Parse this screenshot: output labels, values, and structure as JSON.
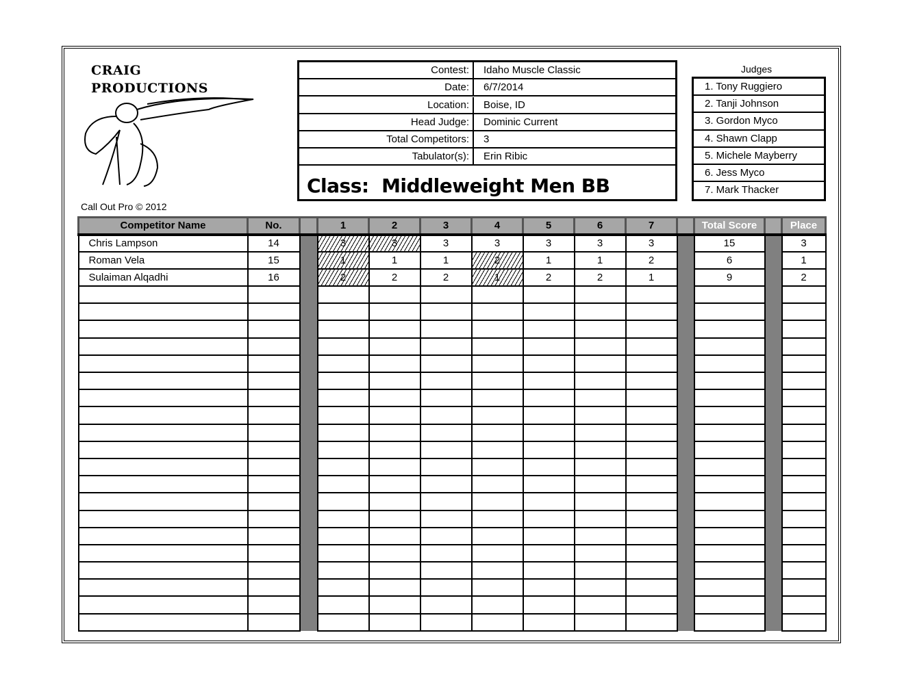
{
  "logo": {
    "line1": "CRAIG",
    "line2": "PRODUCTIONS"
  },
  "footer_note": "Call Out Pro © 2012",
  "info": [
    {
      "label": "Contest:",
      "value": "Idaho Muscle Classic"
    },
    {
      "label": "Date:",
      "value": "6/7/2014"
    },
    {
      "label": "Location:",
      "value": "Boise, ID"
    },
    {
      "label": "Head Judge:",
      "value": "Dominic Current"
    },
    {
      "label": "Total Competitors:",
      "value": "3"
    },
    {
      "label": "Tabulator(s):",
      "value": "Erin Ribic"
    }
  ],
  "class_title": "Class:  Middleweight Men BB",
  "judges_label": "Judges",
  "judges": [
    "1.  Tony Ruggiero",
    "2.  Tanji Johnson",
    "3.  Gordon Myco",
    "4.  Shawn Clapp",
    "5.  Michele Mayberry",
    "6.  Jess Myco",
    "7.  Mark Thacker"
  ],
  "table": {
    "headers": {
      "name": "Competitor Name",
      "no": "No.",
      "judges": [
        "1",
        "2",
        "3",
        "4",
        "5",
        "6",
        "7"
      ],
      "total": "Total Score",
      "place": "Place"
    },
    "rows": [
      {
        "name": "Chris Lampson",
        "no": "14",
        "scores": [
          "3",
          "3",
          "3",
          "3",
          "3",
          "3",
          "3"
        ],
        "dropped": [
          0,
          1
        ],
        "total": "15",
        "place": "3"
      },
      {
        "name": "Roman Vela",
        "no": "15",
        "scores": [
          "1",
          "1",
          "1",
          "2",
          "1",
          "1",
          "2"
        ],
        "dropped": [
          0,
          3
        ],
        "total": "6",
        "place": "1"
      },
      {
        "name": "Sulaiman Alqadhi",
        "no": "16",
        "scores": [
          "2",
          "2",
          "2",
          "1",
          "2",
          "2",
          "1"
        ],
        "dropped": [
          0,
          3
        ],
        "total": "9",
        "place": "2"
      }
    ]
  }
}
